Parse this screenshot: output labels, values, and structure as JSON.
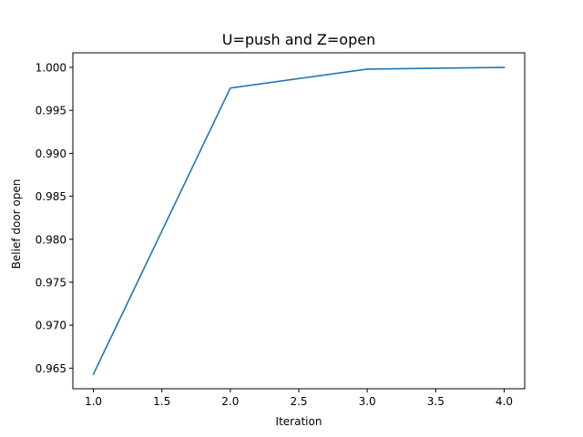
{
  "chart_data": {
    "type": "line",
    "title": "U=push and Z=open",
    "xlabel": "Iteration",
    "ylabel": "Belief door open",
    "x": [
      1,
      2,
      3,
      4
    ],
    "series": [
      {
        "values": [
          0.9643,
          0.9976,
          0.9998,
          1.0
        ],
        "color": "#1f77b4"
      }
    ],
    "xlim": [
      0.85,
      4.15
    ],
    "ylim": [
      0.9626,
      1.0017
    ],
    "xticks": [
      1.0,
      1.5,
      2.0,
      2.5,
      3.0,
      3.5,
      4.0
    ],
    "xtick_labels": [
      "1.0",
      "1.5",
      "2.0",
      "2.5",
      "3.0",
      "3.5",
      "4.0"
    ],
    "yticks": [
      0.965,
      0.97,
      0.975,
      0.98,
      0.985,
      0.99,
      0.995,
      1.0
    ],
    "ytick_labels": [
      "0.965",
      "0.970",
      "0.975",
      "0.980",
      "0.985",
      "0.990",
      "0.995",
      "1.000"
    ],
    "grid": false,
    "legend": "none"
  }
}
